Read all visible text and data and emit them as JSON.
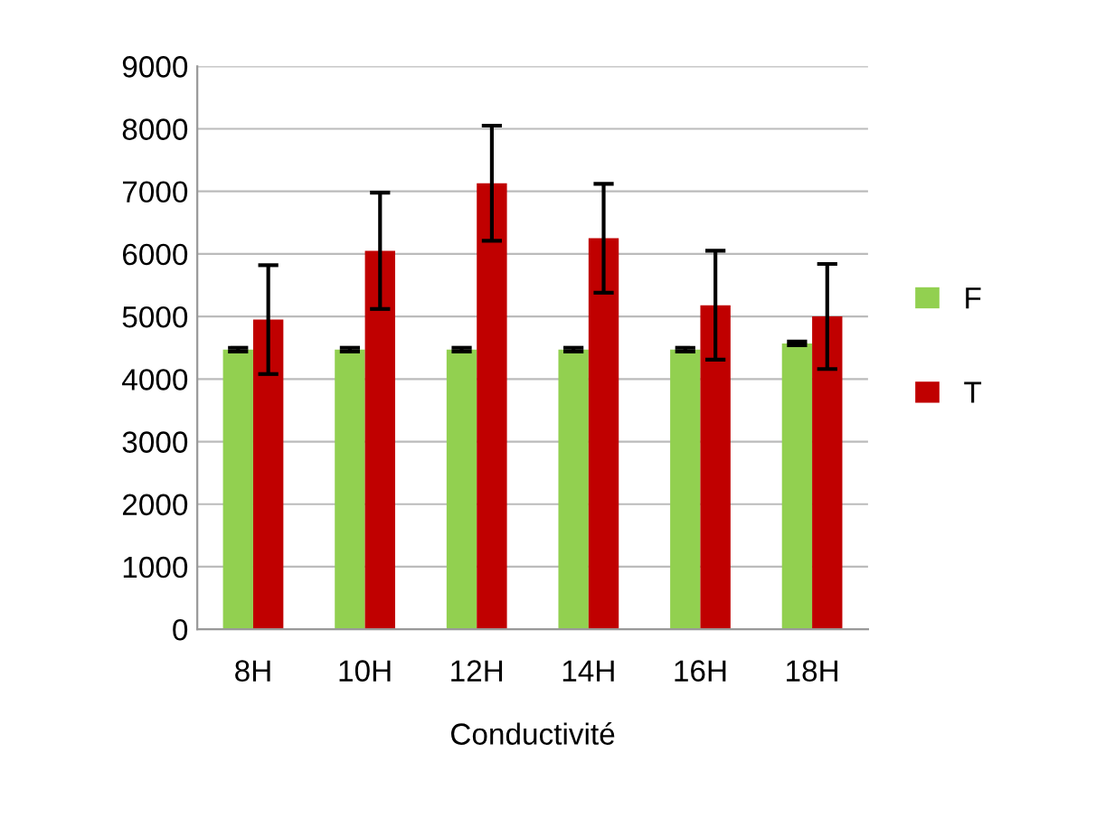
{
  "chart_data": {
    "type": "bar",
    "xlabel": "Conductivité",
    "categories": [
      "8H",
      "10H",
      "12H",
      "14H",
      "16H",
      "18H"
    ],
    "series": [
      {
        "name": "F",
        "color": "#92d050",
        "values": [
          4470,
          4470,
          4470,
          4470,
          4470,
          4570
        ],
        "errors": [
          30,
          30,
          30,
          30,
          30,
          30
        ]
      },
      {
        "name": "T",
        "color": "#c00000",
        "values": [
          4950,
          6050,
          7130,
          6250,
          5180,
          5000
        ],
        "errors": [
          870,
          930,
          920,
          870,
          870,
          840
        ]
      }
    ],
    "ylim": [
      0,
      9000
    ],
    "yticks": [
      0,
      1000,
      2000,
      3000,
      4000,
      5000,
      6000,
      7000,
      8000,
      9000
    ],
    "grid": "y",
    "legend": "right"
  }
}
